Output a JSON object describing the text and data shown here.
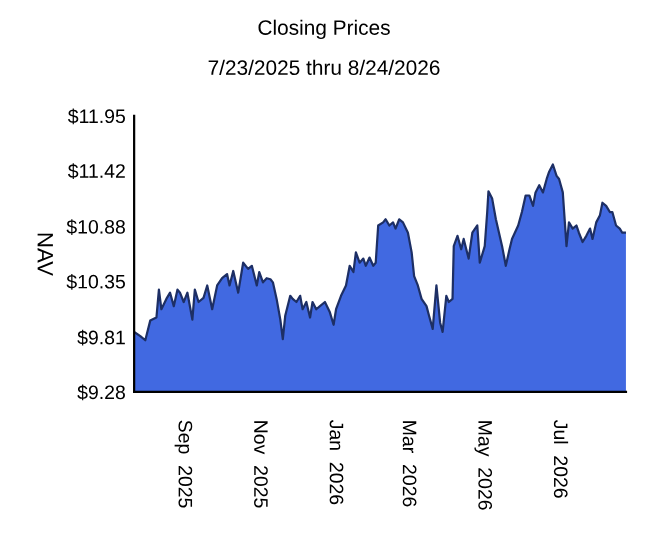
{
  "chart_data": {
    "type": "area",
    "title": "Closing Prices",
    "subtitle": "7/23/2025 thru 8/24/2026",
    "ylabel": "NAV",
    "x": [
      "2025-07-23",
      "2025-07-28",
      "2025-08-01",
      "2025-08-05",
      "2025-08-10",
      "2025-08-12",
      "2025-08-14",
      "2025-08-18",
      "2025-08-21",
      "2025-08-24",
      "2025-08-27",
      "2025-08-29",
      "2025-09-01",
      "2025-09-04",
      "2025-09-08",
      "2025-09-10",
      "2025-09-13",
      "2025-09-17",
      "2025-09-20",
      "2025-09-24",
      "2025-09-28",
      "2025-10-02",
      "2025-10-06",
      "2025-10-08",
      "2025-10-11",
      "2025-10-15",
      "2025-10-19",
      "2025-10-23",
      "2025-10-26",
      "2025-10-30",
      "2025-11-01",
      "2025-11-04",
      "2025-11-07",
      "2025-11-10",
      "2025-11-12",
      "2025-11-15",
      "2025-11-18",
      "2025-11-20",
      "2025-11-22",
      "2025-11-26",
      "2025-11-28",
      "2025-12-01",
      "2025-12-04",
      "2025-12-06",
      "2025-12-09",
      "2025-12-12",
      "2025-12-14",
      "2025-12-17",
      "2025-12-20",
      "2025-12-24",
      "2025-12-28",
      "2025-12-31",
      "2026-01-02",
      "2026-01-06",
      "2026-01-10",
      "2026-01-13",
      "2026-01-16",
      "2026-01-18",
      "2026-01-21",
      "2026-01-24",
      "2026-01-26",
      "2026-01-29",
      "2026-02-01",
      "2026-02-03",
      "2026-02-05",
      "2026-02-09",
      "2026-02-11",
      "2026-02-14",
      "2026-02-17",
      "2026-02-19",
      "2026-02-22",
      "2026-02-25",
      "2026-03-01",
      "2026-03-04",
      "2026-03-06",
      "2026-03-09",
      "2026-03-12",
      "2026-03-16",
      "2026-03-18",
      "2026-03-21",
      "2026-03-24",
      "2026-03-27",
      "2026-03-29",
      "2026-04-01",
      "2026-04-03",
      "2026-04-06",
      "2026-04-07",
      "2026-04-10",
      "2026-04-13",
      "2026-04-15",
      "2026-04-19",
      "2026-04-22",
      "2026-04-26",
      "2026-04-28",
      "2026-05-02",
      "2026-05-04",
      "2026-05-05",
      "2026-05-08",
      "2026-05-11",
      "2026-05-16",
      "2026-05-19",
      "2026-05-22",
      "2026-05-24",
      "2026-05-29",
      "2026-06-01",
      "2026-06-04",
      "2026-06-07",
      "2026-06-10",
      "2026-06-12",
      "2026-06-15",
      "2026-06-18",
      "2026-06-21",
      "2026-06-23",
      "2026-06-26",
      "2026-06-29",
      "2026-07-01",
      "2026-07-04",
      "2026-07-07",
      "2026-07-09",
      "2026-07-12",
      "2026-07-15",
      "2026-07-17",
      "2026-07-20",
      "2026-07-23",
      "2026-07-26",
      "2026-07-28",
      "2026-07-31",
      "2026-08-03",
      "2026-08-05",
      "2026-08-08",
      "2026-08-11",
      "2026-08-13",
      "2026-08-16",
      "2026-08-19",
      "2026-08-21",
      "2026-08-24"
    ],
    "series": [
      {
        "color": "#4169e1",
        "values": [
          9.86,
          9.82,
          9.78,
          9.97,
          10.0,
          10.27,
          10.08,
          10.18,
          10.24,
          10.11,
          10.27,
          10.24,
          10.15,
          10.24,
          9.98,
          10.27,
          10.15,
          10.19,
          10.31,
          10.08,
          10.31,
          10.38,
          10.42,
          10.31,
          10.45,
          10.24,
          10.53,
          10.47,
          10.5,
          10.31,
          10.44,
          10.34,
          10.38,
          10.37,
          10.34,
          10.18,
          9.98,
          9.79,
          10.02,
          10.21,
          10.18,
          10.15,
          10.21,
          10.08,
          10.15,
          10.0,
          10.15,
          10.08,
          10.11,
          10.15,
          10.05,
          9.93,
          10.08,
          10.21,
          10.31,
          10.5,
          10.44,
          10.63,
          10.53,
          10.57,
          10.5,
          10.58,
          10.5,
          10.53,
          10.89,
          10.92,
          10.95,
          10.89,
          10.92,
          10.86,
          10.95,
          10.92,
          10.82,
          10.63,
          10.4,
          10.31,
          10.18,
          10.11,
          10.02,
          9.89,
          10.31,
          9.95,
          9.86,
          10.21,
          10.15,
          10.18,
          10.69,
          10.79,
          10.66,
          10.76,
          10.57,
          10.82,
          10.89,
          10.53,
          10.69,
          11.02,
          11.22,
          11.15,
          10.95,
          10.69,
          10.5,
          10.66,
          10.76,
          10.89,
          11.02,
          11.18,
          11.18,
          11.08,
          11.21,
          11.28,
          11.21,
          11.34,
          11.41,
          11.48,
          11.37,
          11.34,
          11.21,
          10.69,
          10.92,
          10.86,
          10.89,
          10.82,
          10.73,
          10.79,
          10.86,
          10.76,
          10.92,
          10.99,
          11.11,
          11.08,
          11.02,
          11.02,
          10.89,
          10.86,
          10.82,
          10.82
        ]
      }
    ],
    "xlim": [
      "2025-07-23",
      "2026-08-24"
    ],
    "xticks": [
      {
        "value": "2025-09-01",
        "label": "Sep  2025"
      },
      {
        "value": "2025-11-01",
        "label": "Nov  2025"
      },
      {
        "value": "2026-01-01",
        "label": "Jan  2026"
      },
      {
        "value": "2026-03-01",
        "label": "Mar  2026"
      },
      {
        "value": "2026-05-01",
        "label": "May  2026"
      },
      {
        "value": "2026-07-01",
        "label": "Jul  2026"
      }
    ],
    "ylim": [
      9.28,
      11.95
    ],
    "yticks": [
      {
        "value": 9.28,
        "label": "$9.28"
      },
      {
        "value": 9.81,
        "label": "$9.81"
      },
      {
        "value": 10.35,
        "label": "$10.35"
      },
      {
        "value": 10.88,
        "label": "$10.88"
      },
      {
        "value": 11.42,
        "label": "$11.42"
      },
      {
        "value": 11.95,
        "label": "$11.95"
      }
    ],
    "grid": false
  }
}
